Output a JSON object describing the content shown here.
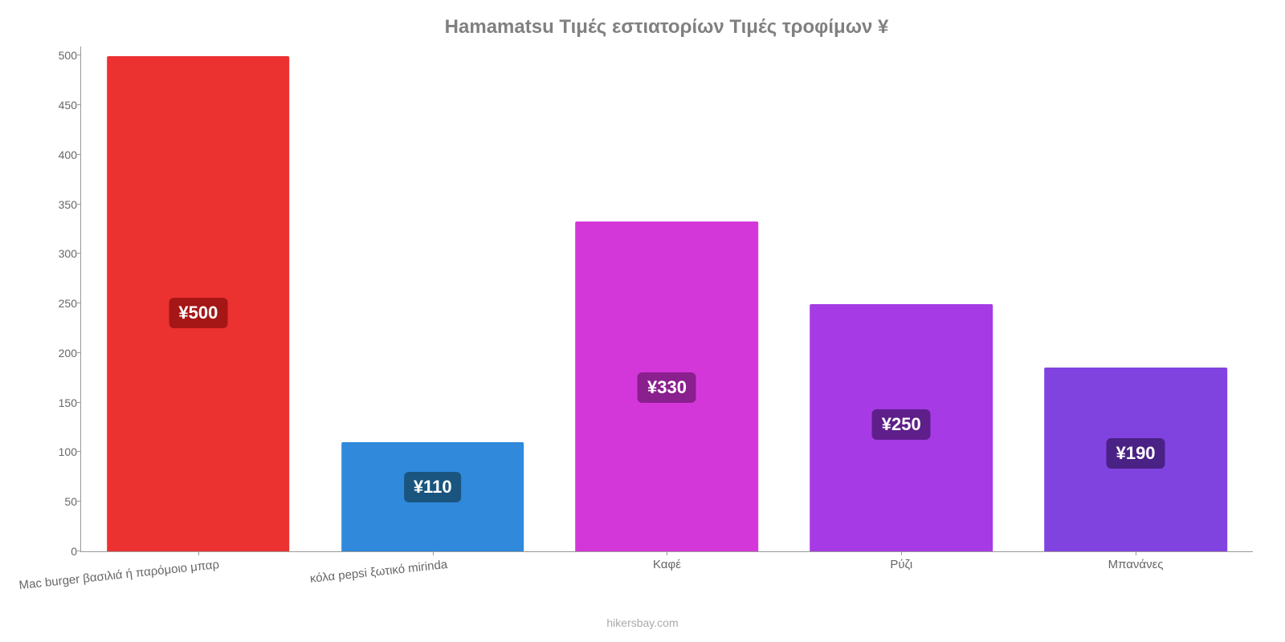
{
  "chart": {
    "type": "bar",
    "title": "Hamamatsu Τιμές εστιατορίων Τιμές τροφίμων ¥",
    "title_color": "#808080",
    "title_fontsize": 24,
    "background_color": "#ffffff",
    "axis_color": "#999999",
    "tick_label_color": "#666666",
    "tick_label_fontsize": 14,
    "x_label_fontsize": 15,
    "ylim": [
      0,
      510
    ],
    "yticks": [
      0,
      50,
      100,
      150,
      200,
      250,
      300,
      350,
      400,
      450,
      500
    ],
    "bar_width_pct": 78,
    "value_label_fontsize": 22,
    "value_label_text_color": "#ffffff",
    "categories": [
      {
        "label": "Mac burger βασιλιά ή παρόμοιο μπαρ",
        "value": 500,
        "value_label": "¥500",
        "bar_color": "#ec3131",
        "badge_color": "#a51616",
        "label_tilt": true
      },
      {
        "label": "κόλα pepsi ξωτικό mirinda",
        "value": 110,
        "value_label": "¥110",
        "bar_color": "#3089db",
        "badge_color": "#19557f",
        "label_tilt": true
      },
      {
        "label": "Καφέ",
        "value": 333,
        "value_label": "¥330",
        "bar_color": "#d437d9",
        "badge_color": "#8a1f8e",
        "label_tilt": false
      },
      {
        "label": "Ρύζι",
        "value": 250,
        "value_label": "¥250",
        "bar_color": "#a63be6",
        "badge_color": "#5f1f8a",
        "label_tilt": false
      },
      {
        "label": "Μπανάνες",
        "value": 186,
        "value_label": "¥190",
        "bar_color": "#8143e0",
        "badge_color": "#4a2286",
        "label_tilt": false
      }
    ],
    "attribution": "hikersbay.com",
    "attribution_color": "#aaaaaa",
    "attribution_fontsize": 14
  }
}
